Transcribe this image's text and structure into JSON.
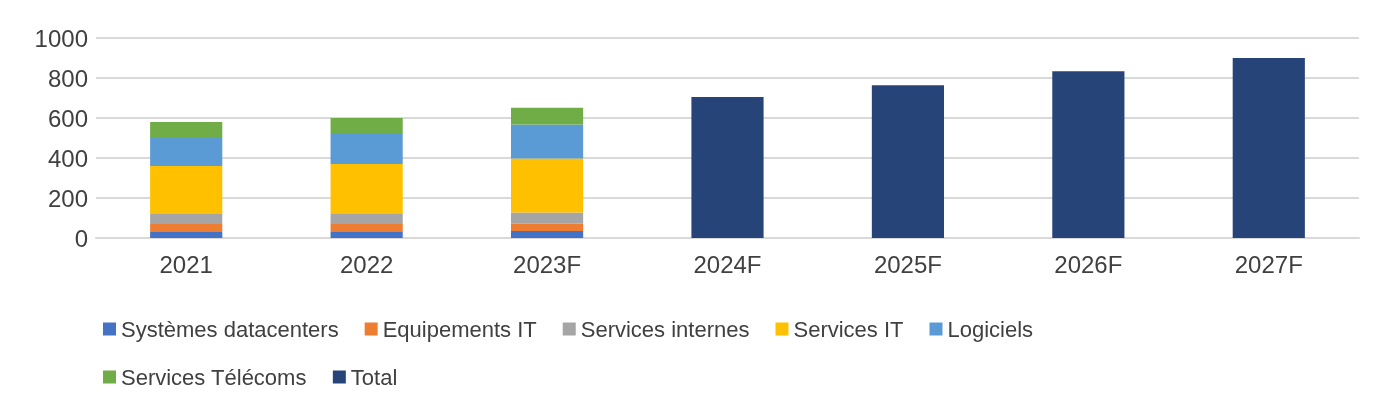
{
  "chart_data": {
    "type": "bar",
    "stacked": true,
    "categories": [
      "2021",
      "2022",
      "2023F",
      "2024F",
      "2025F",
      "2026F",
      "2027F"
    ],
    "series": [
      {
        "name": "Systèmes datacenters",
        "color": "#4472c4",
        "values": [
          30,
          30,
          35,
          null,
          null,
          null,
          null
        ]
      },
      {
        "name": "Equipements IT",
        "color": "#ed7d31",
        "values": [
          40,
          40,
          36,
          null,
          null,
          null,
          null
        ]
      },
      {
        "name": "Services internes",
        "color": "#a5a5a5",
        "values": [
          50,
          50,
          56,
          null,
          null,
          null,
          null
        ]
      },
      {
        "name": "Services IT",
        "color": "#ffc000",
        "values": [
          240,
          250,
          271,
          null,
          null,
          null,
          null
        ]
      },
      {
        "name": "Logiciels",
        "color": "#5b9bd5",
        "values": [
          140,
          150,
          170,
          null,
          null,
          null,
          null
        ]
      },
      {
        "name": "Services Télécoms",
        "color": "#70ad47",
        "values": [
          80,
          80,
          83,
          null,
          null,
          null,
          null
        ]
      },
      {
        "name": "Total",
        "color": "#264478",
        "values": [
          null,
          null,
          null,
          705,
          764,
          834,
          900
        ]
      }
    ],
    "ylim": [
      0,
      1000
    ],
    "yticks": [
      0,
      200,
      400,
      600,
      800,
      1000
    ],
    "grid": "y",
    "legend": "bottom"
  }
}
